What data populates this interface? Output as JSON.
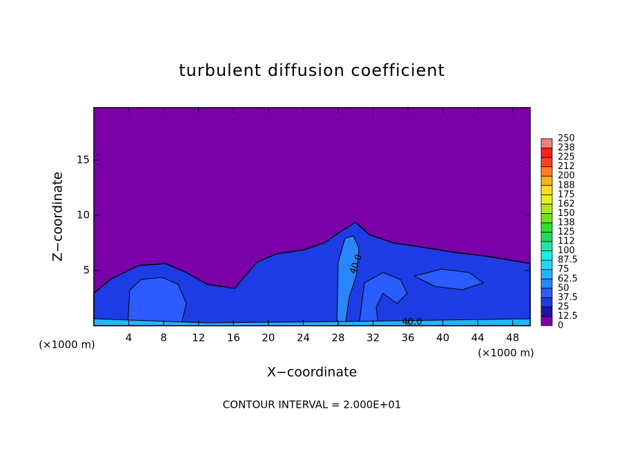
{
  "chart_data": {
    "type": "contour",
    "title": "turbulent diffusion coefficient",
    "x_label": "X−coordinate",
    "y_label": "Z−coordinate",
    "unit_label": "(×1000 m)",
    "footer": "CONTOUR INTERVAL = 2.000E+01",
    "annotations": [
      "40.0",
      "40.0"
    ],
    "xlim": [
      0,
      50
    ],
    "xticks": [
      4,
      8,
      12,
      16,
      20,
      24,
      28,
      32,
      36,
      40,
      44,
      48
    ],
    "ylim": [
      0,
      19.75
    ],
    "yticks": [
      5,
      10,
      15
    ],
    "colorbar": {
      "levels": [
        0,
        12.5,
        25,
        37.5,
        50,
        62.5,
        75,
        87.5,
        100,
        {
          "value": 112.5,
          "label": "112"
        },
        125,
        {
          "value": 137.5,
          "label": "138"
        },
        150,
        {
          "value": 162.5,
          "label": "162"
        },
        175,
        {
          "value": 187.5,
          "label": "188"
        },
        200,
        {
          "value": 212.5,
          "label": "212"
        },
        225,
        {
          "value": 237.5,
          "label": "238"
        },
        250
      ],
      "colors": [
        "#7a00aa",
        "#1a1aa0",
        "#1e3ce6",
        "#2a5cff",
        "#2a86ff",
        "#26b4ff",
        "#20d8ff",
        "#20f0e0",
        "#20e6a8",
        "#20dc60",
        "#30e030",
        "#70e020",
        "#b0e820",
        "#e8f020",
        "#ffe020",
        "#ffb020",
        "#ff8020",
        "#ff4020",
        "#ff2020",
        "#f08080"
      ]
    }
  }
}
